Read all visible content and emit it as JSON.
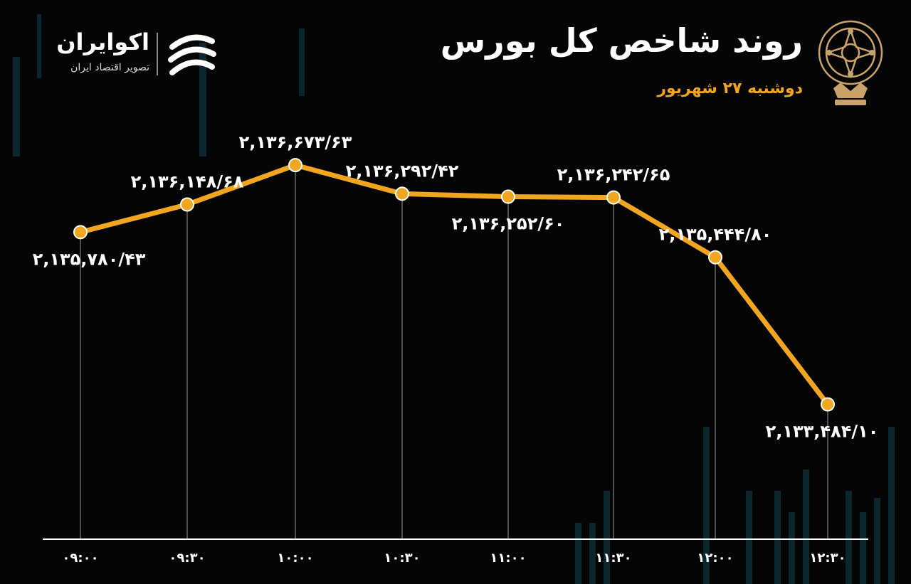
{
  "header": {
    "title": "روند شاخص کل بورس",
    "subtitle": "دوشنبه ۲۷ شهریور"
  },
  "brand": {
    "name": "اکوایران",
    "tagline": "تصویر اقتصاد ایران"
  },
  "colors": {
    "background": "#050505",
    "line": "#f2a51f",
    "marker_fill": "#f2a51f",
    "marker_stroke": "#ffffff",
    "text": "#ffffff",
    "subtitle": "#f2a51f",
    "guide": "#9a9a9a",
    "emblem": "#c9a36a"
  },
  "chart_data": {
    "type": "line",
    "categories": [
      "۰۹:۰۰",
      "۰۹:۳۰",
      "۱۰:۰۰",
      "۱۰:۳۰",
      "۱۱:۰۰",
      "۱۱:۳۰",
      "۱۲:۰۰",
      "۱۲:۳۰"
    ],
    "values": [
      2135780.43,
      2136148.68,
      2136673.63,
      2136292.42,
      2136252.6,
      2136242.65,
      2135444.8,
      2133484.1
    ],
    "data_labels": [
      "۲,۱۳۵,۷۸۰/۴۳",
      "۲,۱۳۶,۱۴۸/۶۸",
      "۲,۱۳۶,۶۷۳/۶۳",
      "۲,۱۳۶,۲۹۲/۴۲",
      "۲,۱۳۶,۲۵۲/۶۰",
      "۲,۱۳۶,۲۴۲/۶۵",
      "۲,۱۳۵,۴۴۴/۸۰",
      "۲,۱۳۳,۴۸۴/۱۰"
    ],
    "label_position": [
      "below",
      "above",
      "above",
      "above",
      "below",
      "above",
      "above",
      "below"
    ],
    "title": "روند شاخص کل بورس",
    "xlabel": "",
    "ylabel": "",
    "ylim": [
      2132000,
      2137500
    ],
    "grid": false,
    "legend": "none"
  }
}
